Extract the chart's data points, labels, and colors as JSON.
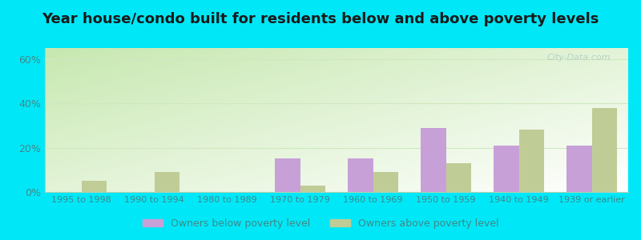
{
  "title": "Year house/condo built for residents below and above poverty levels",
  "categories": [
    "1995 to 1998",
    "1990 to 1994",
    "1980 to 1989",
    "1970 to 1979",
    "1960 to 1969",
    "1950 to 1959",
    "1940 to 1949",
    "1939 or earlier"
  ],
  "below_poverty": [
    0,
    0,
    0,
    15,
    15,
    29,
    21,
    21
  ],
  "above_poverty": [
    5,
    9,
    0,
    3,
    9,
    13,
    28,
    38
  ],
  "below_color": "#c8a0d8",
  "above_color": "#c0cc96",
  "bar_width": 0.35,
  "ylim": [
    0,
    65
  ],
  "yticks": [
    0,
    20,
    40,
    60
  ],
  "ytick_labels": [
    "0%",
    "20%",
    "40%",
    "60%"
  ],
  "legend_below": "Owners below poverty level",
  "legend_above": "Owners above poverty level",
  "bg_outer": "#00e8f8",
  "title_fontsize": 13,
  "tick_color": "#408888",
  "watermark": "City-Data.com"
}
